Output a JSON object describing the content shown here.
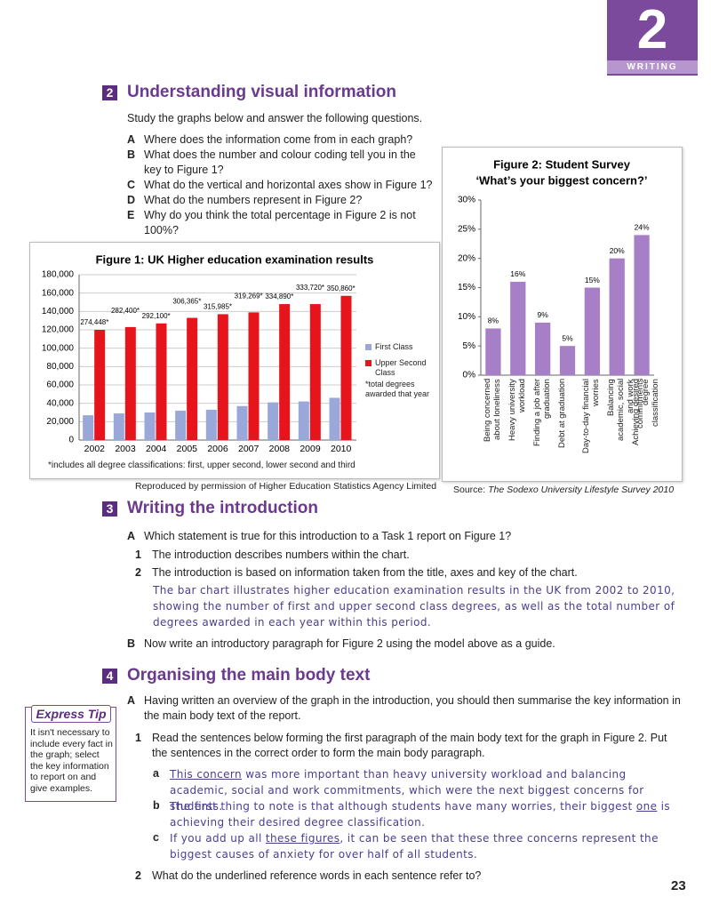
{
  "tab": {
    "number": "2",
    "label": "WRITING"
  },
  "section2": {
    "number": "2",
    "title": "Understanding visual information",
    "intro": "Study the graphs below and answer the following questions.",
    "questions": [
      {
        "letter": "A",
        "text": "Where does the information come from in each graph?"
      },
      {
        "letter": "B",
        "text": "What does the number and colour coding tell you in the key to Figure 1?"
      },
      {
        "letter": "C",
        "text": "What do the vertical and horizontal axes show in Figure 1?"
      },
      {
        "letter": "D",
        "text": "What do the numbers represent in Figure 2?"
      },
      {
        "letter": "E",
        "text": "Why do you think the total percentage in Figure 2 is not 100%?"
      }
    ]
  },
  "chart_data": [
    {
      "type": "bar",
      "title": "Figure 1: UK Higher education examination results",
      "categories": [
        "2002",
        "2003",
        "2004",
        "2005",
        "2006",
        "2007",
        "2008",
        "2009",
        "2010"
      ],
      "series": [
        {
          "name": "First Class",
          "color": "#9aa7d9",
          "values": [
            27000,
            29000,
            30000,
            32000,
            33000,
            37000,
            41000,
            42000,
            46000
          ]
        },
        {
          "name": "Upper Second Class",
          "color": "#e8141c",
          "values": [
            120000,
            123000,
            127000,
            133000,
            137000,
            139000,
            148000,
            148000,
            157000
          ]
        }
      ],
      "totals": {
        "values": [
          274448,
          282400,
          292100,
          306365,
          315985,
          319269,
          334890,
          333720,
          350860
        ],
        "value_labels": [
          "274,448*",
          "282,400*",
          "292,100*",
          "306,365*",
          "315,985*",
          "319,269*",
          "334,890*",
          "333,720*",
          "350,860*"
        ]
      },
      "legend_note": "*total degrees awarded that year",
      "ylim": [
        0,
        180000
      ],
      "yticks": [
        0,
        {
          "value": 20000,
          "label": "20,000"
        },
        {
          "value": 40000,
          "label": "40,000"
        },
        {
          "value": 60000,
          "label": "60,000"
        },
        {
          "value": 80000,
          "label": "80,000"
        },
        {
          "value": 100000,
          "label": "100,000"
        },
        {
          "value": 120000,
          "label": "120,000"
        },
        {
          "value": 140000,
          "label": "140,000"
        },
        {
          "value": 160000,
          "label": "160,000"
        },
        {
          "value": 180000,
          "label": "180,000"
        }
      ],
      "grid": true,
      "legend": "right",
      "footnote": "*includes all degree classifications: first, upper second, lower second and third",
      "credit": "Reproduced by permission of Higher Education Statistics Agency Limited"
    },
    {
      "type": "bar",
      "title": "Figure 2: Student Survey",
      "subtitle": "‘What’s your biggest concern?’",
      "categories": [
        "Being concerned about loneliness",
        "Heavy university workload",
        "Finding a job after graduation",
        "Debt at graduation",
        "Day-to-day financial worries",
        "Balancing academic, social and work commitments",
        "Achieving desired degree classification"
      ],
      "values": [
        8,
        16,
        9,
        5,
        15,
        20,
        24
      ],
      "value_labels": [
        "8%",
        "16%",
        "9%",
        "5%",
        "15%",
        "20%",
        "24%"
      ],
      "color": "#a67fc7",
      "ylim": [
        0,
        30
      ],
      "yticks": [
        {
          "value": 0,
          "label": "0%"
        },
        {
          "value": 5,
          "label": "5%"
        },
        {
          "value": 10,
          "label": "10%"
        },
        {
          "value": 15,
          "label": "15%"
        },
        {
          "value": 20,
          "label": "20%"
        },
        {
          "value": 25,
          "label": "25%"
        },
        {
          "value": 30,
          "label": "30%"
        }
      ],
      "grid": false,
      "source": {
        "label": "Source:",
        "title": "The Sodexo University Lifestyle Survey",
        "year": "2010"
      }
    }
  ],
  "section3": {
    "number": "3",
    "title": "Writing the introduction",
    "a": {
      "letter": "A",
      "text": "Which statement is true for this introduction to a Task 1 report on Figure 1?"
    },
    "options": [
      {
        "number": "1",
        "text": "The introduction describes numbers within the chart."
      },
      {
        "number": "2",
        "text": "The introduction is based on information taken from the title, axes and key of the chart."
      }
    ],
    "model": "The bar chart illustrates higher education examination results in the UK from 2002 to 2010, showing the number of first and upper second class degrees, as well as the total number of degrees awarded in each year within this period.",
    "b": {
      "letter": "B",
      "text": "Now write an introductory paragraph for Figure 2 using the model above as a guide."
    }
  },
  "section4": {
    "number": "4",
    "title": "Organising the main body text",
    "a": {
      "letter": "A",
      "text": "Having written an overview of the graph in the introduction, you should then summarise the key information in the main body text of the report."
    },
    "tasks": [
      {
        "number": "1",
        "text": "Read the sentences below forming the first paragraph of the main body text for the graph in Figure 2. Put the sentences in the correct order to form the main body paragraph.",
        "sentences": [
          {
            "letter": "a",
            "underlined": "This concern",
            "after": " was more important than heavy university workload and balancing academic, social and work commitments, which were the next biggest concerns for students."
          },
          {
            "letter": "b",
            "before": "The first thing to note is that although students have many worries, their biggest ",
            "underlined": "one",
            "after": " is achieving their desired degree classification."
          },
          {
            "letter": "c",
            "before": "If you add up all ",
            "underlined": "these figures",
            "after": ", it can be seen that these three concerns represent the biggest causes of anxiety for over half of all students."
          }
        ]
      },
      {
        "number": "2",
        "text": "What do the underlined reference words in each sentence refer to?"
      }
    ]
  },
  "express_tip": {
    "title": "Express Tip",
    "text": "It isn't necessary to include every fact in the graph; select the key information to report on and give examples."
  },
  "page_number": "23"
}
